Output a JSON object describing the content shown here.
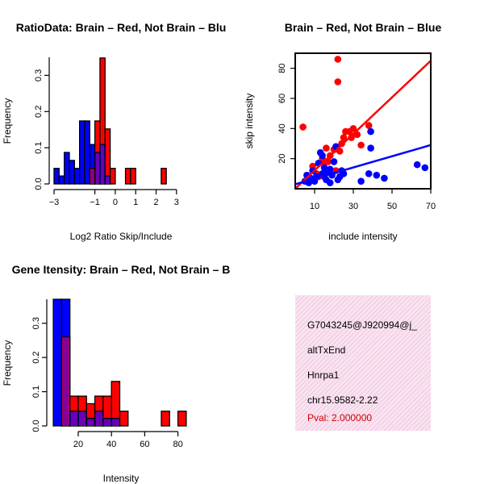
{
  "colors": {
    "red": "#ff0000",
    "blue": "#0000ff",
    "purple": "#7700aa",
    "black": "#000000"
  },
  "chart_data": [
    {
      "type": "bar",
      "title": "RatioData: Brain – Red, Not Brain – Blu",
      "xlabel": "Log2 Ratio Skip/Include",
      "ylabel": "Frequency",
      "xlim": [
        -3,
        3.6
      ],
      "ylim": [
        0,
        0.35
      ],
      "xticks": [
        -3,
        -1,
        0,
        1,
        2,
        3
      ],
      "yticks": [
        0.0,
        0.1,
        0.2,
        0.3
      ],
      "bin_width": 0.25,
      "bin_start": -3,
      "series": [
        {
          "name": "Not Brain",
          "color": "blue",
          "values": [
            0.043,
            0.022,
            0.087,
            0.065,
            0.043,
            0.174,
            0.174,
            0.109,
            0.087,
            0.109,
            0.022,
            0,
            0,
            0,
            0,
            0,
            0,
            0,
            0,
            0,
            0,
            0
          ]
        },
        {
          "name": "Brain",
          "color": "red",
          "values": [
            0,
            0,
            0,
            0,
            0,
            0,
            0,
            0.043,
            0.174,
            0.348,
            0.152,
            0.043,
            0,
            0,
            0.043,
            0.043,
            0,
            0,
            0,
            0,
            0,
            0.043
          ]
        }
      ]
    },
    {
      "type": "scatter",
      "title": "Brain – Red, Not Brain – Blue",
      "xlabel": "include intensity",
      "ylabel": "skip intensity",
      "xlim": [
        0,
        70
      ],
      "ylim": [
        0,
        90
      ],
      "xticks": [
        10,
        30,
        50,
        70
      ],
      "yticks": [
        20,
        40,
        60,
        80
      ],
      "series": [
        {
          "name": "Brain",
          "color": "red",
          "points": [
            [
              4,
              41
            ],
            [
              9,
              15
            ],
            [
              11,
              10
            ],
            [
              14,
              20
            ],
            [
              15,
              17
            ],
            [
              16,
              27
            ],
            [
              18,
              22
            ],
            [
              20,
              26
            ],
            [
              21,
              12
            ],
            [
              22,
              86
            ],
            [
              22,
              71
            ],
            [
              25,
              34
            ],
            [
              26,
              38
            ],
            [
              28,
              38
            ],
            [
              29,
              34
            ],
            [
              30,
              40
            ],
            [
              32,
              36
            ],
            [
              34,
              29
            ],
            [
              38,
              42
            ],
            [
              12,
              8
            ],
            [
              17,
              18
            ],
            [
              24,
              30
            ],
            [
              23,
              25
            ]
          ],
          "fit": [
            [
              0,
              0
            ],
            [
              70,
              85
            ]
          ]
        },
        {
          "name": "Not Brain",
          "color": "blue",
          "points": [
            [
              5,
              5
            ],
            [
              6,
              9
            ],
            [
              7,
              4
            ],
            [
              8,
              7
            ],
            [
              9,
              12
            ],
            [
              10,
              5
            ],
            [
              11,
              8
            ],
            [
              12,
              17
            ],
            [
              13,
              24
            ],
            [
              14,
              22
            ],
            [
              15,
              14
            ],
            [
              15,
              8
            ],
            [
              16,
              6
            ],
            [
              17,
              11
            ],
            [
              18,
              13
            ],
            [
              19,
              9
            ],
            [
              20,
              18
            ],
            [
              21,
              28
            ],
            [
              22,
              6
            ],
            [
              23,
              8
            ],
            [
              24,
              12
            ],
            [
              25,
              10
            ],
            [
              34,
              5
            ],
            [
              38,
              10
            ],
            [
              39,
              27
            ],
            [
              39,
              38
            ],
            [
              42,
              9
            ],
            [
              46,
              7
            ],
            [
              63,
              16
            ],
            [
              67,
              14
            ],
            [
              14,
              10
            ],
            [
              18,
              4
            ]
          ],
          "fit": [
            [
              0,
              3
            ],
            [
              70,
              29
            ]
          ]
        }
      ]
    },
    {
      "type": "bar",
      "title": "Gene Itensity: Brain – Red, Not Brain – B",
      "xlabel": "Intensity",
      "ylabel": "Frequency",
      "xlim": [
        4,
        87
      ],
      "ylim": [
        0,
        0.37
      ],
      "xticks": [
        20,
        40,
        60,
        80
      ],
      "yticks": [
        0.0,
        0.1,
        0.2,
        0.3
      ],
      "bin_width": 5,
      "bin_start": 5,
      "series": [
        {
          "name": "Not Brain",
          "color": "blue",
          "values": [
            0.37,
            0.37,
            0.043,
            0.043,
            0.022,
            0.043,
            0.022,
            0.022,
            0,
            0,
            0,
            0,
            0,
            0,
            0,
            0
          ]
        },
        {
          "name": "Brain",
          "color": "red",
          "values": [
            0,
            0.26,
            0.087,
            0.087,
            0.065,
            0.087,
            0.087,
            0.13,
            0.043,
            0,
            0,
            0,
            0,
            0.043,
            0,
            0.043
          ]
        }
      ]
    }
  ],
  "info": {
    "id": "G7043245@J920994@j_",
    "event": "altTxEnd",
    "gene": "Hnrpa1",
    "location": "chr15.9582-2.22",
    "pval": "Pval: 2.000000"
  }
}
